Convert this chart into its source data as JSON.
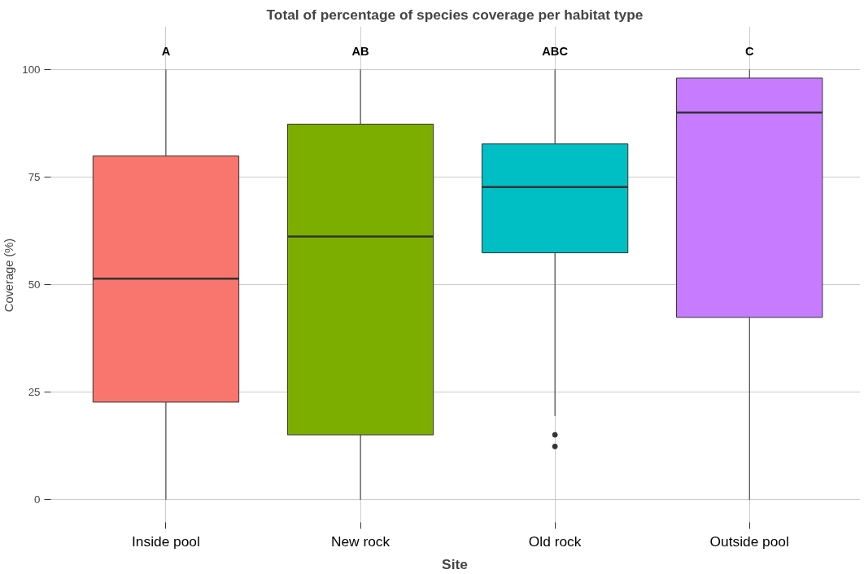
{
  "chart_data": {
    "type": "box",
    "title": "Total of percentage of species coverage per habitat type",
    "xlabel": "Site",
    "ylabel": "Coverage (%)",
    "categories": [
      "Inside pool",
      "New rock",
      "Old rock",
      "Outside pool"
    ],
    "colors": [
      "#f8766d",
      "#7cae00",
      "#00bfc4",
      "#c77cff"
    ],
    "boxes": [
      {
        "low": 0,
        "q1": 22.7,
        "median": 51.4,
        "q3": 79.9,
        "high": 100
      },
      {
        "low": 0,
        "q1": 15.1,
        "median": 61.2,
        "q3": 87.3,
        "high": 100
      },
      {
        "low": 19.5,
        "q1": 57.4,
        "median": 72.7,
        "q3": 82.7,
        "high": 100,
        "outliers": [
          15.1,
          12.4
        ]
      },
      {
        "low": 0,
        "q1": 42.4,
        "median": 90.0,
        "q3": 98.0,
        "high": 100
      }
    ],
    "annotations": [
      "A",
      "AB",
      "ABC",
      "C"
    ],
    "ylim": [
      -5.6,
      110
    ],
    "yticks": [
      0,
      25,
      50,
      75,
      100
    ],
    "grid": true
  }
}
